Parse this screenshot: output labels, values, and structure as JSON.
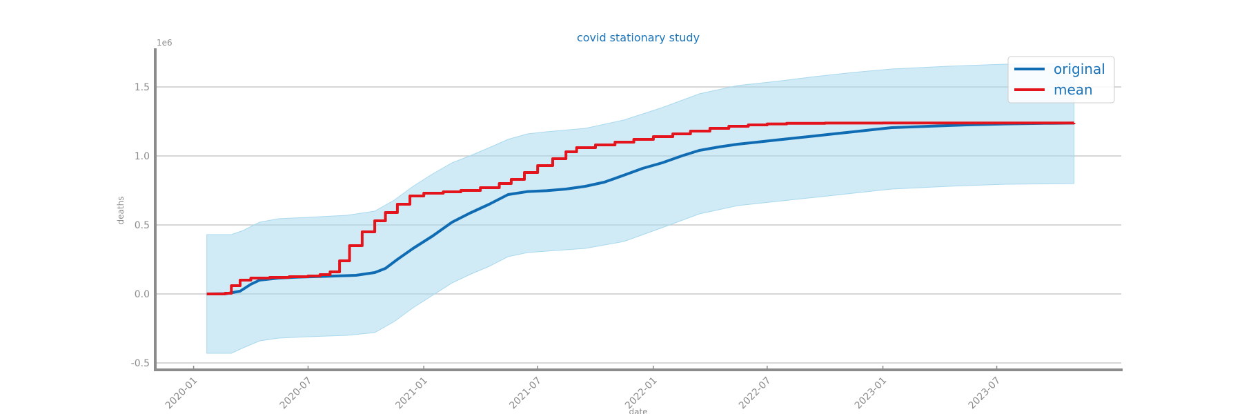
{
  "chart_data": {
    "type": "line",
    "title": "covid stationary study",
    "xlabel": "date",
    "ylabel": "deaths",
    "y_multiplier_label": "1e6",
    "ylim": [
      -0.55,
      1.78
    ],
    "xlim": [
      "2019-11-01",
      "2024-01-15"
    ],
    "x_tick_labels": [
      "2020-01",
      "2020-07",
      "2021-01",
      "2021-07",
      "2022-01",
      "2022-07",
      "2023-01",
      "2023-07"
    ],
    "y_tick_labels": [
      "-0.5",
      "0.0",
      "0.5",
      "1.0",
      "1.5"
    ],
    "y_tick_values": [
      -0.5,
      0.0,
      0.5,
      1.0,
      1.5
    ],
    "grid": "horizontal",
    "legend_position": "top-right",
    "colors": {
      "original": "#0f6cb3",
      "mean": "#e3141b",
      "band": "#a9d9ee"
    },
    "series": [
      {
        "name": "original",
        "points": [
          [
            "2020-01-22",
            0.0
          ],
          [
            "2020-02-22",
            0.002
          ],
          [
            "2020-03-15",
            0.02
          ],
          [
            "2020-04-01",
            0.07
          ],
          [
            "2020-04-15",
            0.1
          ],
          [
            "2020-05-15",
            0.115
          ],
          [
            "2020-06-15",
            0.122
          ],
          [
            "2020-08-01",
            0.128
          ],
          [
            "2020-09-15",
            0.135
          ],
          [
            "2020-10-15",
            0.155
          ],
          [
            "2020-11-01",
            0.185
          ],
          [
            "2020-11-20",
            0.25
          ],
          [
            "2020-12-15",
            0.33
          ],
          [
            "2021-01-15",
            0.42
          ],
          [
            "2021-02-15",
            0.52
          ],
          [
            "2021-03-15",
            0.585
          ],
          [
            "2021-04-15",
            0.65
          ],
          [
            "2021-05-15",
            0.72
          ],
          [
            "2021-06-15",
            0.742
          ],
          [
            "2021-07-15",
            0.748
          ],
          [
            "2021-08-15",
            0.76
          ],
          [
            "2021-09-15",
            0.78
          ],
          [
            "2021-10-15",
            0.81
          ],
          [
            "2021-11-15",
            0.86
          ],
          [
            "2021-12-15",
            0.91
          ],
          [
            "2022-01-15",
            0.95
          ],
          [
            "2022-02-15",
            1.0
          ],
          [
            "2022-03-15",
            1.04
          ],
          [
            "2022-04-15",
            1.065
          ],
          [
            "2022-05-15",
            1.085
          ],
          [
            "2022-06-15",
            1.1
          ],
          [
            "2022-07-15",
            1.115
          ],
          [
            "2022-08-15",
            1.13
          ],
          [
            "2022-09-15",
            1.145
          ],
          [
            "2022-10-15",
            1.16
          ],
          [
            "2022-11-15",
            1.175
          ],
          [
            "2022-12-15",
            1.19
          ],
          [
            "2023-01-15",
            1.205
          ],
          [
            "2023-03-15",
            1.215
          ],
          [
            "2023-05-15",
            1.225
          ],
          [
            "2023-07-15",
            1.232
          ],
          [
            "2023-09-15",
            1.236
          ],
          [
            "2023-11-01",
            1.238
          ]
        ]
      },
      {
        "name": "mean",
        "points": [
          [
            "2020-01-22",
            0.0
          ],
          [
            "2020-02-05",
            0.0
          ],
          [
            "2020-02-20",
            0.005
          ],
          [
            "2020-03-01",
            0.06
          ],
          [
            "2020-03-15",
            0.1
          ],
          [
            "2020-04-01",
            0.115
          ],
          [
            "2020-05-01",
            0.12
          ],
          [
            "2020-06-01",
            0.125
          ],
          [
            "2020-07-01",
            0.13
          ],
          [
            "2020-07-20",
            0.14
          ],
          [
            "2020-08-05",
            0.16
          ],
          [
            "2020-08-20",
            0.24
          ],
          [
            "2020-09-05",
            0.35
          ],
          [
            "2020-09-25",
            0.45
          ],
          [
            "2020-10-15",
            0.53
          ],
          [
            "2020-11-01",
            0.59
          ],
          [
            "2020-11-20",
            0.65
          ],
          [
            "2020-12-10",
            0.71
          ],
          [
            "2021-01-01",
            0.73
          ],
          [
            "2021-02-01",
            0.74
          ],
          [
            "2021-03-01",
            0.75
          ],
          [
            "2021-04-01",
            0.77
          ],
          [
            "2021-05-01",
            0.8
          ],
          [
            "2021-05-20",
            0.83
          ],
          [
            "2021-06-10",
            0.88
          ],
          [
            "2021-07-01",
            0.93
          ],
          [
            "2021-07-25",
            0.98
          ],
          [
            "2021-08-15",
            1.03
          ],
          [
            "2021-09-01",
            1.06
          ],
          [
            "2021-10-01",
            1.08
          ],
          [
            "2021-11-01",
            1.1
          ],
          [
            "2021-12-01",
            1.12
          ],
          [
            "2022-01-01",
            1.14
          ],
          [
            "2022-02-01",
            1.16
          ],
          [
            "2022-03-01",
            1.18
          ],
          [
            "2022-04-01",
            1.2
          ],
          [
            "2022-05-01",
            1.215
          ],
          [
            "2022-06-01",
            1.225
          ],
          [
            "2022-07-01",
            1.232
          ],
          [
            "2022-08-01",
            1.236
          ],
          [
            "2022-10-01",
            1.238
          ],
          [
            "2023-01-01",
            1.239
          ],
          [
            "2023-11-01",
            1.24
          ]
        ]
      }
    ],
    "band": {
      "name": "range",
      "points": [
        [
          "2020-01-22",
          -0.43,
          0.43
        ],
        [
          "2020-03-01",
          -0.43,
          0.43
        ],
        [
          "2020-03-20",
          -0.39,
          0.46
        ],
        [
          "2020-04-15",
          -0.34,
          0.52
        ],
        [
          "2020-05-15",
          -0.32,
          0.545
        ],
        [
          "2020-07-01",
          -0.31,
          0.555
        ],
        [
          "2020-09-01",
          -0.3,
          0.57
        ],
        [
          "2020-10-15",
          -0.28,
          0.6
        ],
        [
          "2020-11-15",
          -0.2,
          0.68
        ],
        [
          "2020-12-15",
          -0.1,
          0.78
        ],
        [
          "2021-01-15",
          -0.01,
          0.87
        ],
        [
          "2021-02-15",
          0.08,
          0.95
        ],
        [
          "2021-03-15",
          0.14,
          1.0
        ],
        [
          "2021-04-15",
          0.2,
          1.06
        ],
        [
          "2021-05-15",
          0.27,
          1.12
        ],
        [
          "2021-06-15",
          0.3,
          1.16
        ],
        [
          "2021-07-15",
          0.31,
          1.175
        ],
        [
          "2021-09-15",
          0.33,
          1.2
        ],
        [
          "2021-11-15",
          0.38,
          1.26
        ],
        [
          "2022-01-15",
          0.48,
          1.35
        ],
        [
          "2022-03-15",
          0.58,
          1.45
        ],
        [
          "2022-05-15",
          0.64,
          1.51
        ],
        [
          "2022-07-15",
          0.67,
          1.54
        ],
        [
          "2022-09-15",
          0.7,
          1.575
        ],
        [
          "2022-11-15",
          0.73,
          1.605
        ],
        [
          "2023-01-15",
          0.76,
          1.63
        ],
        [
          "2023-04-15",
          0.78,
          1.65
        ],
        [
          "2023-07-15",
          0.795,
          1.665
        ],
        [
          "2023-11-01",
          0.8,
          1.67
        ]
      ]
    }
  }
}
